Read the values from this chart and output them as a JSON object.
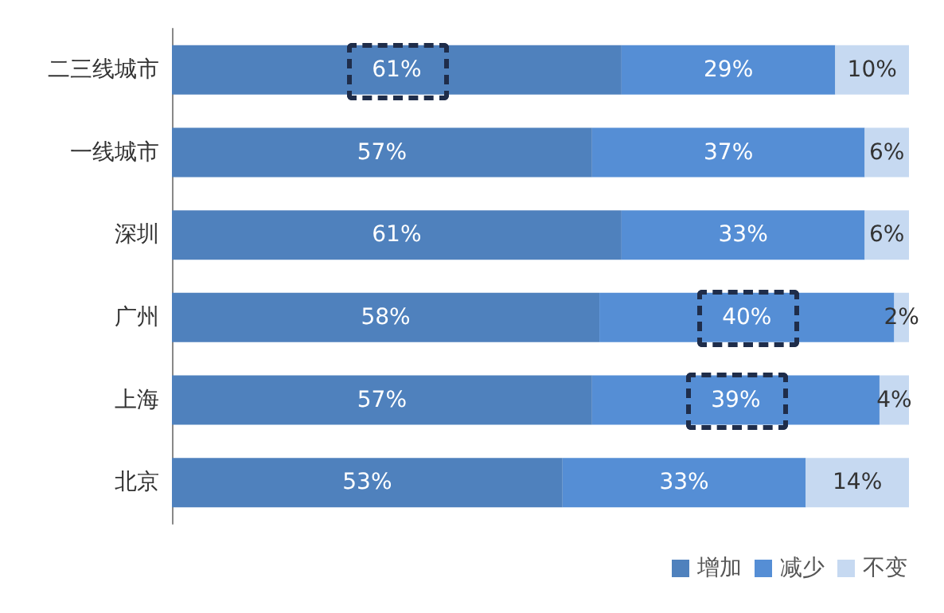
{
  "chart_data": {
    "type": "bar",
    "orientation": "horizontal",
    "stacked": true,
    "categories": [
      "二三线城市",
      "一线城市",
      "深圳",
      "广州",
      "上海",
      "北京"
    ],
    "xlim": [
      0,
      100
    ],
    "legend": "bottom right",
    "series": [
      {
        "name": "增加",
        "color": "#4f81bd",
        "values": [
          61,
          57,
          61,
          58,
          57,
          53
        ],
        "value_labels": [
          "61%",
          "57%",
          "61%",
          "58%",
          "57%",
          "53%"
        ]
      },
      {
        "name": "减少",
        "color": "#558ed5",
        "values": [
          29,
          37,
          33,
          40,
          39,
          33
        ],
        "value_labels": [
          "29%",
          "37%",
          "33%",
          "40%",
          "39%",
          "33%"
        ]
      },
      {
        "name": "不变",
        "color": "#c6d9f1",
        "values": [
          10,
          6,
          6,
          2,
          4,
          14
        ],
        "value_labels": [
          "10%",
          "6%",
          "6%",
          "2%",
          "4%",
          "14%"
        ]
      }
    ]
  }
}
